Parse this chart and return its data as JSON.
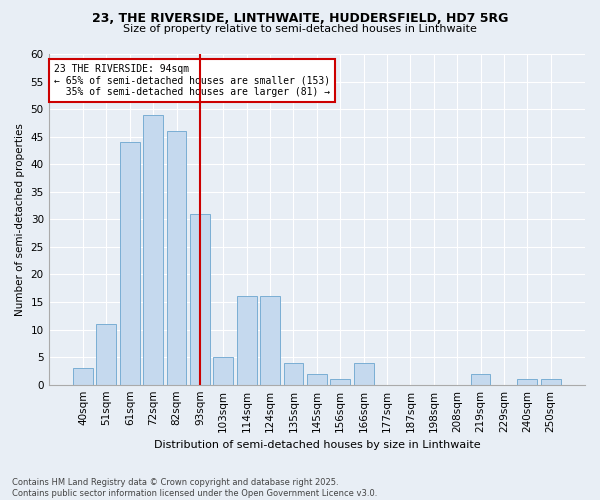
{
  "title_line1": "23, THE RIVERSIDE, LINTHWAITE, HUDDERSFIELD, HD7 5RG",
  "title_line2": "Size of property relative to semi-detached houses in Linthwaite",
  "xlabel": "Distribution of semi-detached houses by size in Linthwaite",
  "ylabel": "Number of semi-detached properties",
  "categories": [
    "40sqm",
    "51sqm",
    "61sqm",
    "72sqm",
    "82sqm",
    "93sqm",
    "103sqm",
    "114sqm",
    "124sqm",
    "135sqm",
    "145sqm",
    "156sqm",
    "166sqm",
    "177sqm",
    "187sqm",
    "198sqm",
    "208sqm",
    "219sqm",
    "229sqm",
    "240sqm",
    "250sqm"
  ],
  "values": [
    3,
    11,
    44,
    49,
    46,
    31,
    5,
    16,
    16,
    4,
    2,
    1,
    4,
    0,
    0,
    0,
    0,
    2,
    0,
    1,
    1
  ],
  "bar_color": "#c5d9ee",
  "bar_edge_color": "#7aaed4",
  "vline_color": "#cc0000",
  "annotation_line1": "23 THE RIVERSIDE: 94sqm",
  "annotation_line2": "← 65% of semi-detached houses are smaller (153)",
  "annotation_line3": "  35% of semi-detached houses are larger (81) →",
  "annotation_box_color": "#ffffff",
  "annotation_box_edge": "#cc0000",
  "ylim": [
    0,
    60
  ],
  "yticks": [
    0,
    5,
    10,
    15,
    20,
    25,
    30,
    35,
    40,
    45,
    50,
    55,
    60
  ],
  "footer": "Contains HM Land Registry data © Crown copyright and database right 2025.\nContains public sector information licensed under the Open Government Licence v3.0.",
  "bg_color": "#e8eef5",
  "plot_bg_color": "#e8eef5",
  "grid_color": "#ffffff"
}
